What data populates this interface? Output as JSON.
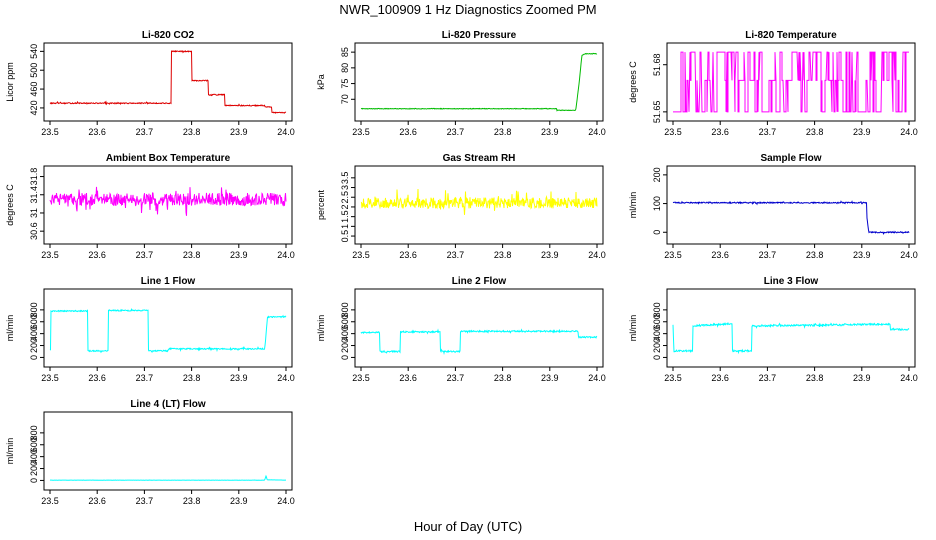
{
  "figure": {
    "title": "NWR_100909  1 Hz Diagnostics Zoomed PM",
    "xlabel": "Hour of Day (UTC)"
  },
  "chart_data": [
    {
      "type": "line",
      "title": "Li-820 CO2",
      "ylabel": "Licor ppm",
      "color": "#dd0000",
      "xlim": [
        23.5,
        24.0
      ],
      "ylim": [
        405,
        545
      ],
      "xticks": [
        "23.5",
        "23.6",
        "23.7",
        "23.8",
        "23.9",
        "24.0"
      ],
      "yticks": [
        420,
        460,
        500,
        540
      ],
      "noise": 1,
      "x": [
        23.5,
        23.757,
        23.757,
        23.8,
        23.8,
        23.835,
        23.835,
        23.87,
        23.87,
        23.955,
        23.955,
        23.97,
        23.97,
        24.0
      ],
      "y": [
        430,
        430,
        540,
        540,
        478,
        478,
        448,
        448,
        425,
        425,
        422,
        422,
        410,
        410
      ]
    },
    {
      "type": "line",
      "title": "Li-820 Pressure",
      "ylabel": "kPa",
      "color": "#00bb00",
      "xlim": [
        23.5,
        24.0
      ],
      "ylim": [
        65,
        86
      ],
      "xticks": [
        "23.5",
        "23.6",
        "23.7",
        "23.8",
        "23.9",
        "24.0"
      ],
      "yticks": [
        70,
        75,
        80,
        85
      ],
      "noise": 0.1,
      "x": [
        23.5,
        23.915,
        23.915,
        23.955,
        23.962,
        23.968,
        23.975,
        24.0
      ],
      "y": [
        67,
        67,
        66.5,
        66.5,
        75,
        84,
        84.5,
        84.5
      ]
    },
    {
      "type": "step-noise",
      "title": "Li-820 Temperature",
      "ylabel": "degrees C",
      "color": "#ff00ff",
      "xlim": [
        23.5,
        24.0
      ],
      "ylim": [
        51.648,
        51.69
      ],
      "xticks": [
        "23.5",
        "23.6",
        "23.7",
        "23.8",
        "23.9",
        "24.0"
      ],
      "yticks": [
        51.65,
        51.68
      ],
      "levels": [
        51.65,
        51.67,
        51.688
      ]
    },
    {
      "type": "line",
      "title": "Ambient Box Temperature",
      "ylabel": "degrees C",
      "color": "#ff00ff",
      "xlim": [
        23.5,
        24.0
      ],
      "ylim": [
        30.45,
        31.9
      ],
      "xticks": [
        "23.5",
        "23.6",
        "23.7",
        "23.8",
        "23.9",
        "24.0"
      ],
      "yticks": [
        30.6,
        31.0,
        31.4,
        31.8
      ],
      "noise": 0.14,
      "x": [
        23.5,
        24.0
      ],
      "y": [
        31.3,
        31.3
      ]
    },
    {
      "type": "line",
      "title": "Gas Stream RH",
      "ylabel": "percent",
      "color": "#ffff00",
      "xlim": [
        23.5,
        24.0
      ],
      "ylim": [
        0.4,
        3.8
      ],
      "xticks": [
        "23.5",
        "23.6",
        "23.7",
        "23.8",
        "23.9",
        "24.0"
      ],
      "yticks": [
        0.5,
        1.0,
        1.5,
        2.0,
        2.5,
        3.0,
        3.5
      ],
      "noise": 0.28,
      "x": [
        23.5,
        24.0
      ],
      "y": [
        2.2,
        2.2
      ]
    },
    {
      "type": "line",
      "title": "Sample Flow",
      "ylabel": "ml/min",
      "color": "#0000cc",
      "xlim": [
        23.5,
        24.0
      ],
      "ylim": [
        -20,
        210
      ],
      "xticks": [
        "23.5",
        "23.6",
        "23.7",
        "23.8",
        "23.9",
        "24.0"
      ],
      "yticks": [
        0,
        100,
        200
      ],
      "noise": 2,
      "x": [
        23.5,
        23.91,
        23.91,
        23.915,
        23.93,
        24.0
      ],
      "y": [
        103,
        103,
        60,
        0,
        0,
        0
      ]
    },
    {
      "type": "line",
      "title": "Line 1 Flow",
      "ylabel": "ml/min",
      "color": "#00ffff",
      "xlim": [
        23.5,
        24.0
      ],
      "ylim": [
        -60,
        1050
      ],
      "xticks": [
        "23.5",
        "23.6",
        "23.7",
        "23.8",
        "23.9",
        "24.0"
      ],
      "yticks": [
        0,
        200,
        400,
        600,
        800
      ],
      "noise": 10,
      "x": [
        23.5,
        23.502,
        23.502,
        23.58,
        23.58,
        23.623,
        23.623,
        23.708,
        23.708,
        23.75,
        23.75,
        23.955,
        23.955,
        23.96,
        23.96,
        24.0
      ],
      "y": [
        120,
        120,
        780,
        780,
        110,
        110,
        790,
        790,
        110,
        110,
        145,
        145,
        145,
        600,
        680,
        680
      ]
    },
    {
      "type": "line",
      "title": "Line 2 Flow",
      "ylabel": "ml/min",
      "color": "#00ffff",
      "xlim": [
        23.5,
        24.0
      ],
      "ylim": [
        -60,
        1050
      ],
      "xticks": [
        "23.5",
        "23.6",
        "23.7",
        "23.8",
        "23.9",
        "24.0"
      ],
      "yticks": [
        0,
        200,
        400,
        600,
        800
      ],
      "noise": 12,
      "x": [
        23.5,
        23.54,
        23.54,
        23.583,
        23.583,
        23.668,
        23.668,
        23.71,
        23.71,
        23.96,
        23.96,
        24.0
      ],
      "y": [
        420,
        420,
        100,
        100,
        430,
        430,
        100,
        100,
        440,
        440,
        340,
        340
      ]
    },
    {
      "type": "line",
      "title": "Line 3 Flow",
      "ylabel": "ml/min",
      "color": "#00ffff",
      "xlim": [
        23.5,
        24.0
      ],
      "ylim": [
        -60,
        1050
      ],
      "xticks": [
        "23.5",
        "23.6",
        "23.7",
        "23.8",
        "23.9",
        "24.0"
      ],
      "yticks": [
        0,
        200,
        400,
        600,
        800
      ],
      "noise": 14,
      "x": [
        23.5,
        23.502,
        23.502,
        23.542,
        23.542,
        23.625,
        23.625,
        23.667,
        23.667,
        23.96,
        23.96,
        24.0
      ],
      "y": [
        540,
        110,
        110,
        110,
        530,
        570,
        110,
        110,
        530,
        560,
        470,
        470
      ]
    },
    {
      "type": "line",
      "title": "Line 4 (LT) Flow",
      "ylabel": "ml/min",
      "color": "#00ffff",
      "xlim": [
        23.5,
        24.0
      ],
      "ylim": [
        -60,
        1050
      ],
      "xticks": [
        "23.5",
        "23.6",
        "23.7",
        "23.8",
        "23.9",
        "24.0"
      ],
      "yticks": [
        0,
        200,
        400,
        600,
        800
      ],
      "noise": 1,
      "x": [
        23.5,
        23.955,
        23.956,
        23.958,
        23.96,
        24.0
      ],
      "y": [
        5,
        5,
        40,
        80,
        10,
        5
      ]
    }
  ]
}
